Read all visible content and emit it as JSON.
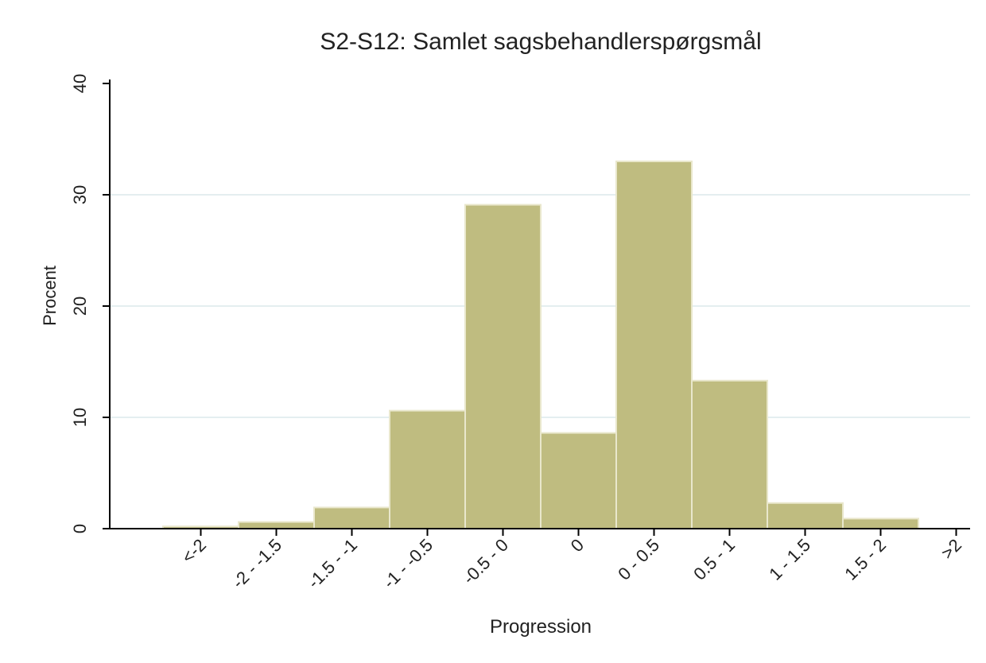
{
  "chart_data": {
    "type": "bar",
    "title": "S2-S12: Samlet sagsbehandlerspørgsmål",
    "x_label": "Progression",
    "y_label": "Procent",
    "categories": [
      "<-2",
      "-2 - -1.5",
      "-1.5 - -1",
      "-1 - -0.5",
      "-0.5 - 0",
      "0",
      "0 - 0.5",
      "0.5 - 1",
      "1 - 1.5",
      "1.5 - 2",
      ">2"
    ],
    "values": [
      0.2,
      0.6,
      1.9,
      10.6,
      29.1,
      8.6,
      33,
      13.3,
      2.3,
      0.9,
      0
    ],
    "color": "#bfbc80",
    "ylim": [
      0,
      40
    ],
    "yticks": [
      0,
      10,
      20,
      30,
      40
    ],
    "grid": true
  }
}
